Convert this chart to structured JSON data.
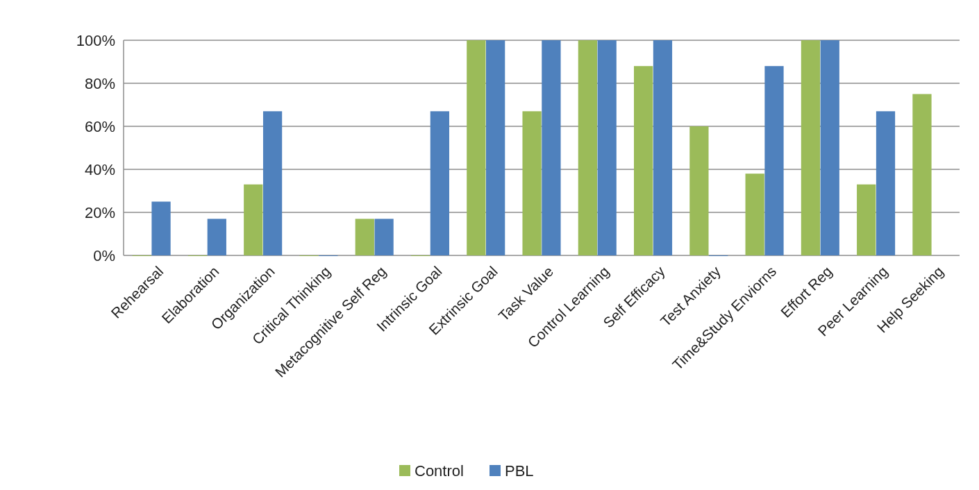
{
  "chart_data": {
    "type": "bar",
    "categories": [
      "Rehearsal",
      "Elaboration",
      "Organization",
      "Critical Thinking",
      "Metacognitive Self Reg",
      "Intrinsic Goal",
      "Extrinsic Goal",
      "Task Value",
      "Control Learning",
      "Self Efficacy",
      "Test Anxiety",
      "Time&Study Enviorns",
      "Effort Reg",
      "Peer Learning",
      "Help Seeking"
    ],
    "series": [
      {
        "name": "Control",
        "color": "#9bbb59",
        "values": [
          0,
          0,
          33,
          0,
          17,
          0,
          100,
          67,
          100,
          88,
          60,
          38,
          100,
          33,
          75
        ]
      },
      {
        "name": "PBL",
        "color": "#4f81bd",
        "values": [
          25,
          17,
          67,
          0,
          17,
          67,
          100,
          100,
          100,
          100,
          0,
          88,
          100,
          67,
          null
        ]
      }
    ],
    "ylim": [
      0,
      100
    ],
    "yticks": [
      {
        "value": 0,
        "label": "0%"
      },
      {
        "value": 20,
        "label": "20%"
      },
      {
        "value": 40,
        "label": "40%"
      },
      {
        "value": 60,
        "label": "60%"
      },
      {
        "value": 80,
        "label": "80%"
      },
      {
        "value": 100,
        "label": "100%"
      }
    ],
    "grid": "y",
    "legend": "bottom"
  }
}
